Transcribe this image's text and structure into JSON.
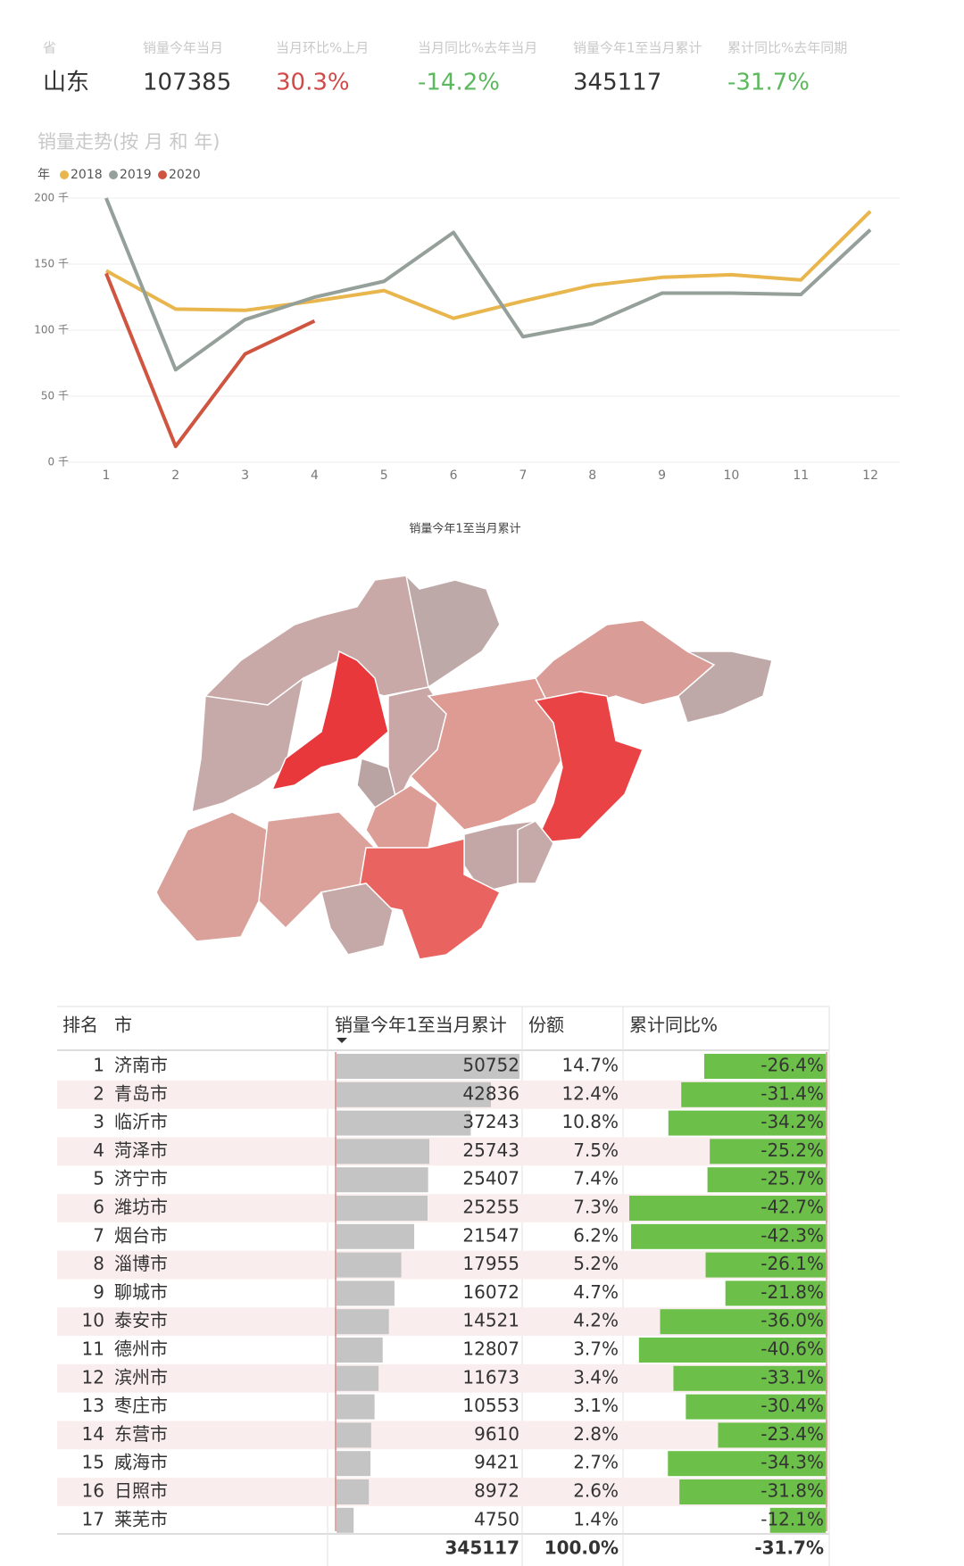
{
  "kpis": [
    {
      "label": "省",
      "value": "山东"
    },
    {
      "label": "销量今年当月",
      "value": 107385
    },
    {
      "label": "当月环比%上月",
      "value": "30.3%"
    },
    {
      "label": "当月同比%去年当月",
      "value": "-14.2%"
    },
    {
      "label": "销量今年1至当月累计",
      "value": 345117
    },
    {
      "label": "累计同比%去年同期",
      "value": "-31.7%"
    }
  ],
  "chart_data": {
    "type": "line",
    "title": "销量走势(按 月 和 年)",
    "legend_title": "年",
    "x": [
      1,
      2,
      3,
      4,
      5,
      6,
      7,
      8,
      9,
      10,
      11,
      12
    ],
    "xlim": [
      0.5,
      12.5
    ],
    "xticks": [
      1,
      2,
      3,
      4,
      5,
      6,
      7,
      8,
      9,
      10,
      11,
      12
    ],
    "ylim": [
      0,
      200
    ],
    "yticks": [
      {
        "value": 0,
        "label": "0 千"
      },
      {
        "value": 50,
        "label": "50 千"
      },
      {
        "value": 100,
        "label": "100 千"
      },
      {
        "value": 150,
        "label": "150 千"
      },
      {
        "value": 200,
        "label": "200 千"
      }
    ],
    "grid": true,
    "series": [
      {
        "name": "2018",
        "color": "#e8b64c",
        "values": [
          145,
          116,
          115,
          122,
          130,
          109,
          122,
          134,
          140,
          142,
          138,
          190
        ]
      },
      {
        "name": "2019",
        "color": "#95a09a",
        "values": [
          200,
          70,
          108,
          125,
          137,
          174,
          95,
          105,
          128,
          128,
          127,
          176
        ]
      },
      {
        "name": "2020",
        "color": "#cf5540",
        "values": [
          143,
          12,
          82,
          107,
          null,
          null,
          null,
          null,
          null,
          null,
          null,
          null
        ]
      }
    ]
  },
  "map": {
    "title": "销量今年1至当月累计"
  },
  "table": {
    "header": [
      "排名",
      "市",
      "销量今年1至当月累计",
      "份额",
      "累计同比%"
    ],
    "rows": [
      {
        "rank": 1,
        "city": "济南市",
        "sales": 50752,
        "share": "14.7%",
        "yoy": -26.4,
        "yoy_label": "-26.4%"
      },
      {
        "rank": 2,
        "city": "青岛市",
        "sales": 42836,
        "share": "12.4%",
        "yoy": -31.4,
        "yoy_label": "-31.4%"
      },
      {
        "rank": 3,
        "city": "临沂市",
        "sales": 37243,
        "share": "10.8%",
        "yoy": -34.2,
        "yoy_label": "-34.2%"
      },
      {
        "rank": 4,
        "city": "菏泽市",
        "sales": 25743,
        "share": "7.5%",
        "yoy": -25.2,
        "yoy_label": "-25.2%"
      },
      {
        "rank": 5,
        "city": "济宁市",
        "sales": 25407,
        "share": "7.4%",
        "yoy": -25.7,
        "yoy_label": "-25.7%"
      },
      {
        "rank": 6,
        "city": "潍坊市",
        "sales": 25255,
        "share": "7.3%",
        "yoy": -42.7,
        "yoy_label": "-42.7%"
      },
      {
        "rank": 7,
        "city": "烟台市",
        "sales": 21547,
        "share": "6.2%",
        "yoy": -42.3,
        "yoy_label": "-42.3%"
      },
      {
        "rank": 8,
        "city": "淄博市",
        "sales": 17955,
        "share": "5.2%",
        "yoy": -26.1,
        "yoy_label": "-26.1%"
      },
      {
        "rank": 9,
        "city": "聊城市",
        "sales": 16072,
        "share": "4.7%",
        "yoy": -21.8,
        "yoy_label": "-21.8%"
      },
      {
        "rank": 10,
        "city": "泰安市",
        "sales": 14521,
        "share": "4.2%",
        "yoy": -36.0,
        "yoy_label": "-36.0%"
      },
      {
        "rank": 11,
        "city": "德州市",
        "sales": 12807,
        "share": "3.7%",
        "yoy": -40.6,
        "yoy_label": "-40.6%"
      },
      {
        "rank": 12,
        "city": "滨州市",
        "sales": 11673,
        "share": "3.4%",
        "yoy": -33.1,
        "yoy_label": "-33.1%"
      },
      {
        "rank": 13,
        "city": "枣庄市",
        "sales": 10553,
        "share": "3.1%",
        "yoy": -30.4,
        "yoy_label": "-30.4%"
      },
      {
        "rank": 14,
        "city": "东营市",
        "sales": 9610,
        "share": "2.8%",
        "yoy": -23.4,
        "yoy_label": "-23.4%"
      },
      {
        "rank": 15,
        "city": "威海市",
        "sales": 9421,
        "share": "2.7%",
        "yoy": -34.3,
        "yoy_label": "-34.3%"
      },
      {
        "rank": 16,
        "city": "日照市",
        "sales": 8972,
        "share": "2.6%",
        "yoy": -31.8,
        "yoy_label": "-31.8%"
      },
      {
        "rank": 17,
        "city": "莱芜市",
        "sales": 4750,
        "share": "1.4%",
        "yoy": -12.1,
        "yoy_label": "-12.1%"
      }
    ],
    "total": {
      "sales": 345117,
      "share": "100.0%",
      "yoy_label": "-31.7%"
    }
  }
}
